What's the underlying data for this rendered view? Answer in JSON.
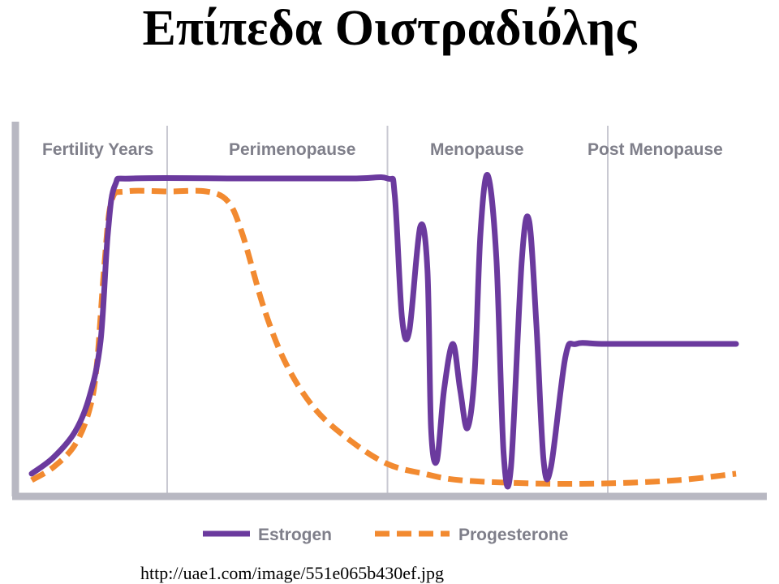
{
  "slide": {
    "title": "Επίπεδα Οιστραδιόλης",
    "source": "http://uae1.com/image/551e065b430ef.jpg"
  },
  "chart_data": {
    "type": "line",
    "title": "",
    "xlabel": "",
    "ylabel": "",
    "grid": false,
    "legend_position": "bottom",
    "phases": [
      {
        "name": "Fertility Years",
        "start": 0,
        "end": 2
      },
      {
        "name": "Perimenopause",
        "start": 2,
        "end": 5
      },
      {
        "name": "Menopause",
        "start": 5,
        "end": 8
      },
      {
        "name": "Post Menopause",
        "start": 8,
        "end": 10
      }
    ],
    "xlim": [
      0,
      10
    ],
    "ylim": [
      0,
      100
    ],
    "series": [
      {
        "name": "Estrogen",
        "color": "#6b3a9e",
        "style": "solid",
        "points": [
          [
            0.1,
            4
          ],
          [
            0.4,
            9
          ],
          [
            0.7,
            17
          ],
          [
            0.9,
            28
          ],
          [
            1.05,
            45
          ],
          [
            1.15,
            78
          ],
          [
            1.25,
            93
          ],
          [
            1.5,
            95
          ],
          [
            3.0,
            95
          ],
          [
            4.5,
            95
          ],
          [
            5.0,
            95
          ],
          [
            5.1,
            90
          ],
          [
            5.2,
            52
          ],
          [
            5.3,
            48
          ],
          [
            5.45,
            80
          ],
          [
            5.55,
            67
          ],
          [
            5.6,
            18
          ],
          [
            5.68,
            8
          ],
          [
            5.78,
            30
          ],
          [
            5.9,
            44
          ],
          [
            6.0,
            30
          ],
          [
            6.1,
            18
          ],
          [
            6.2,
            35
          ],
          [
            6.28,
            78
          ],
          [
            6.38,
            96
          ],
          [
            6.5,
            70
          ],
          [
            6.6,
            10
          ],
          [
            6.7,
            6
          ],
          [
            6.85,
            70
          ],
          [
            6.95,
            82
          ],
          [
            7.05,
            50
          ],
          [
            7.15,
            8
          ],
          [
            7.25,
            6
          ],
          [
            7.45,
            40
          ],
          [
            7.6,
            44
          ],
          [
            8.0,
            44
          ],
          [
            9.0,
            44
          ],
          [
            9.8,
            44
          ]
        ]
      },
      {
        "name": "Progesterone",
        "color": "#f28a30",
        "style": "dashed",
        "points": [
          [
            0.1,
            2
          ],
          [
            0.4,
            6
          ],
          [
            0.7,
            13
          ],
          [
            0.9,
            24
          ],
          [
            1.0,
            38
          ],
          [
            1.1,
            68
          ],
          [
            1.2,
            88
          ],
          [
            1.4,
            91
          ],
          [
            2.0,
            91
          ],
          [
            2.5,
            91
          ],
          [
            2.8,
            88
          ],
          [
            3.0,
            78
          ],
          [
            3.3,
            55
          ],
          [
            3.6,
            38
          ],
          [
            4.0,
            24
          ],
          [
            4.5,
            14
          ],
          [
            5.0,
            7
          ],
          [
            5.5,
            4
          ],
          [
            6.0,
            2
          ],
          [
            7.0,
            1
          ],
          [
            8.0,
            1
          ],
          [
            9.0,
            2
          ],
          [
            9.8,
            4
          ]
        ]
      }
    ]
  }
}
